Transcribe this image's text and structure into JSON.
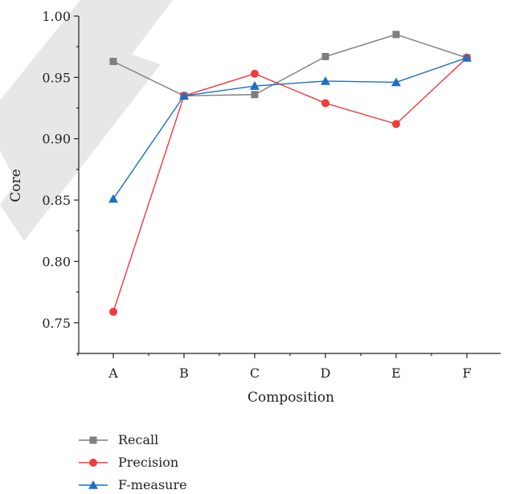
{
  "chart_data": {
    "type": "line",
    "categories": [
      "A",
      "B",
      "C",
      "D",
      "E",
      "F"
    ],
    "xlabel": "Composition",
    "ylabel": "Core",
    "ylim": [
      0.725,
      1.0
    ],
    "yticks": [
      0.75,
      0.8,
      0.85,
      0.9,
      0.95,
      1.0
    ],
    "ytick_labels": [
      "0.75",
      "0.80",
      "0.85",
      "0.90",
      "0.95",
      "1.00"
    ],
    "grid": false,
    "legend_position": "bottom-left",
    "series": [
      {
        "name": "Recall",
        "color": "#7f7f7f",
        "marker": "square",
        "values": [
          0.963,
          0.935,
          0.936,
          0.967,
          0.985,
          0.966
        ]
      },
      {
        "name": "Precision",
        "color": "#ee3b3b",
        "marker": "circle",
        "values": [
          0.759,
          0.935,
          0.953,
          0.929,
          0.912,
          0.966
        ]
      },
      {
        "name": "F-measure",
        "color": "#1f6fc5",
        "marker": "triangle",
        "values": [
          0.851,
          0.935,
          0.943,
          0.947,
          0.946,
          0.966
        ]
      }
    ]
  }
}
